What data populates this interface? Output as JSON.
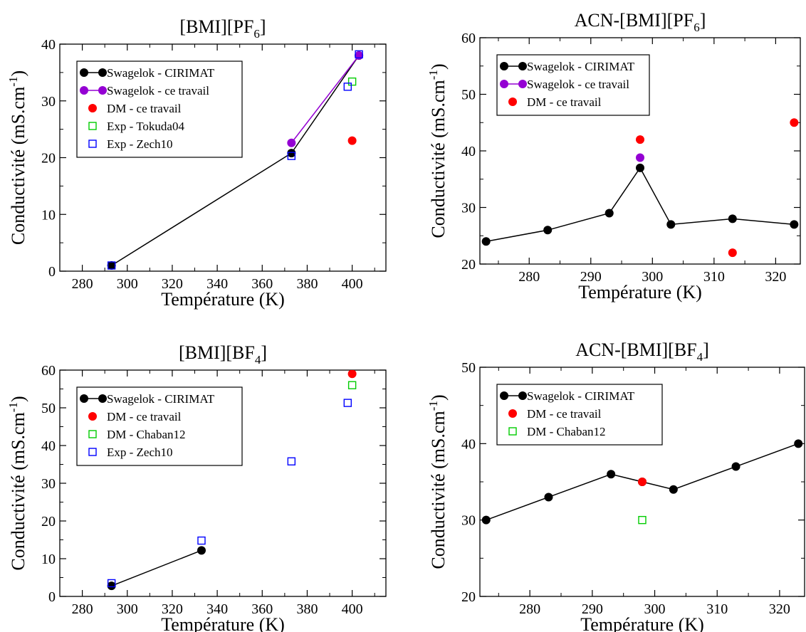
{
  "chart_data": [
    {
      "type": "scatter",
      "title": "[BMI][PF6]",
      "title_main": "[BMI][PF",
      "title_sub": "6",
      "title_tail": "]",
      "xlabel": "Température (K)",
      "ylabel": "Conductivité (mS.cm-1)",
      "ylabel_main": "Conductivité (mS.cm",
      "ylabel_sup": "-1",
      "ylabel_tail": ")",
      "xlim": [
        270,
        415
      ],
      "ylim": [
        0,
        40
      ],
      "xticks": [
        280,
        300,
        320,
        340,
        360,
        380,
        400
      ],
      "yticks": [
        0,
        10,
        20,
        30,
        40
      ],
      "grid": false,
      "legend_position": "top-left",
      "series": [
        {
          "name": "Swagelok - CIRIMAT",
          "style": "line-filled-circle",
          "color": "#000000",
          "x": [
            293,
            373,
            403
          ],
          "y": [
            1,
            20.8,
            38
          ]
        },
        {
          "name": "Swagelok - ce travail",
          "style": "line-filled-circle",
          "color": "#9400d3",
          "x": [
            373,
            403
          ],
          "y": [
            22.6,
            38
          ]
        },
        {
          "name": "DM - ce travail",
          "style": "filled-circle",
          "color": "#ff0000",
          "x": [
            400
          ],
          "y": [
            23
          ]
        },
        {
          "name": "Exp - Tokuda04",
          "style": "open-square",
          "color": "#00cc00",
          "x": [
            400
          ],
          "y": [
            33.4
          ]
        },
        {
          "name": "Exp - Zech10",
          "style": "open-square",
          "color": "#0000ff",
          "x": [
            293,
            373,
            398,
            403
          ],
          "y": [
            1,
            20.3,
            32.5,
            38.2
          ]
        }
      ]
    },
    {
      "type": "scatter",
      "title": "ACN-[BMI][PF6]",
      "title_main": "ACN-[BMI][PF",
      "title_sub": "6",
      "title_tail": "]",
      "xlabel": "Température (K)",
      "ylabel": "Conductivité (mS.cm-1)",
      "ylabel_main": "Conductivité (mS.cm",
      "ylabel_sup": "-1",
      "ylabel_tail": ")",
      "xlim": [
        272,
        324
      ],
      "ylim": [
        20,
        60
      ],
      "xticks": [
        280,
        290,
        300,
        310,
        320
      ],
      "yticks": [
        20,
        30,
        40,
        50,
        60
      ],
      "grid": false,
      "legend_position": "top-left",
      "series": [
        {
          "name": "Swagelok - CIRIMAT",
          "style": "line-filled-circle",
          "color": "#000000",
          "x": [
            273,
            283,
            293,
            298,
            303,
            313,
            323
          ],
          "y": [
            24,
            26,
            29,
            37,
            27,
            28,
            27
          ]
        },
        {
          "name": "Swagelok - ce travail",
          "style": "line-filled-circle",
          "color": "#9400d3",
          "x": [
            298
          ],
          "y": [
            38.8
          ]
        },
        {
          "name": "DM - ce travail",
          "style": "filled-circle",
          "color": "#ff0000",
          "x": [
            298,
            313,
            323
          ],
          "y": [
            42,
            22,
            45
          ]
        }
      ]
    },
    {
      "type": "scatter",
      "title": "[BMI][BF4]",
      "title_main": "[BMI][BF",
      "title_sub": "4",
      "title_tail": "]",
      "xlabel": "Température (K)",
      "ylabel": "Conductivité (mS.cm-1)",
      "ylabel_main": "Conductivité (mS.cm",
      "ylabel_sup": "-1",
      "ylabel_tail": ")",
      "xlim": [
        270,
        415
      ],
      "ylim": [
        0,
        60
      ],
      "xticks": [
        280,
        300,
        320,
        340,
        360,
        380,
        400
      ],
      "yticks": [
        0,
        10,
        20,
        30,
        40,
        50,
        60
      ],
      "grid": false,
      "legend_position": "top-left",
      "series": [
        {
          "name": "Swagelok - CIRIMAT",
          "style": "line-filled-circle",
          "color": "#000000",
          "x": [
            293,
            333
          ],
          "y": [
            2.8,
            12.2
          ]
        },
        {
          "name": "DM - ce travail",
          "style": "filled-circle",
          "color": "#ff0000",
          "x": [
            400
          ],
          "y": [
            59
          ]
        },
        {
          "name": "DM - Chaban12",
          "style": "open-square",
          "color": "#00cc00",
          "x": [
            400
          ],
          "y": [
            56
          ]
        },
        {
          "name": "Exp - Zech10",
          "style": "open-square",
          "color": "#0000ff",
          "x": [
            293,
            333,
            373,
            398
          ],
          "y": [
            3.5,
            14.8,
            35.8,
            51.3
          ]
        }
      ]
    },
    {
      "type": "scatter",
      "title": "ACN-[BMI][BF4]",
      "title_main": "ACN-[BMI][BF",
      "title_sub": "4",
      "title_tail": "]",
      "xlabel": "Température (K)",
      "ylabel": "Conductivité (mS.cm-1)",
      "ylabel_main": "Conductivité (mS.cm",
      "ylabel_sup": "-1",
      "ylabel_tail": ")",
      "xlim": [
        272,
        324
      ],
      "ylim": [
        20,
        50
      ],
      "xticks": [
        280,
        290,
        300,
        310,
        320
      ],
      "yticks": [
        20,
        30,
        40,
        50
      ],
      "grid": false,
      "legend_position": "top-left",
      "series": [
        {
          "name": "Swagelok - CIRIMAT",
          "style": "line-filled-circle",
          "color": "#000000",
          "x": [
            273,
            283,
            293,
            298,
            303,
            313,
            323
          ],
          "y": [
            30,
            33,
            36,
            35,
            34,
            37,
            40
          ]
        },
        {
          "name": "DM - ce travail",
          "style": "filled-circle",
          "color": "#ff0000",
          "x": [
            298
          ],
          "y": [
            35
          ]
        },
        {
          "name": "DM - Chaban12",
          "style": "open-square",
          "color": "#00cc00",
          "x": [
            298
          ],
          "y": [
            30
          ]
        }
      ]
    }
  ]
}
